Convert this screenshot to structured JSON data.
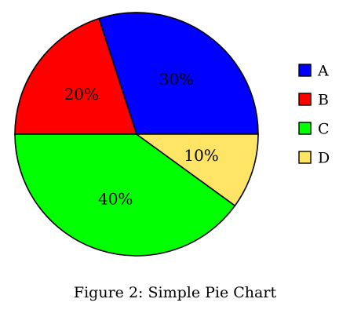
{
  "chart_data": {
    "type": "pie",
    "categories": [
      "A",
      "B",
      "C",
      "D"
    ],
    "values": [
      30,
      20,
      40,
      10
    ],
    "data_labels": [
      "30%",
      "20%",
      "40%",
      "10%"
    ],
    "colors": [
      "#0000ff",
      "#ff0000",
      "#00ff00",
      "#ffe566"
    ],
    "start_angle_deg": 0,
    "direction": "counterclockwise",
    "legend": {
      "placement": "right",
      "entries": [
        "A",
        "B",
        "C",
        "D"
      ]
    },
    "caption": "Figure 2: Simple Pie Chart"
  }
}
